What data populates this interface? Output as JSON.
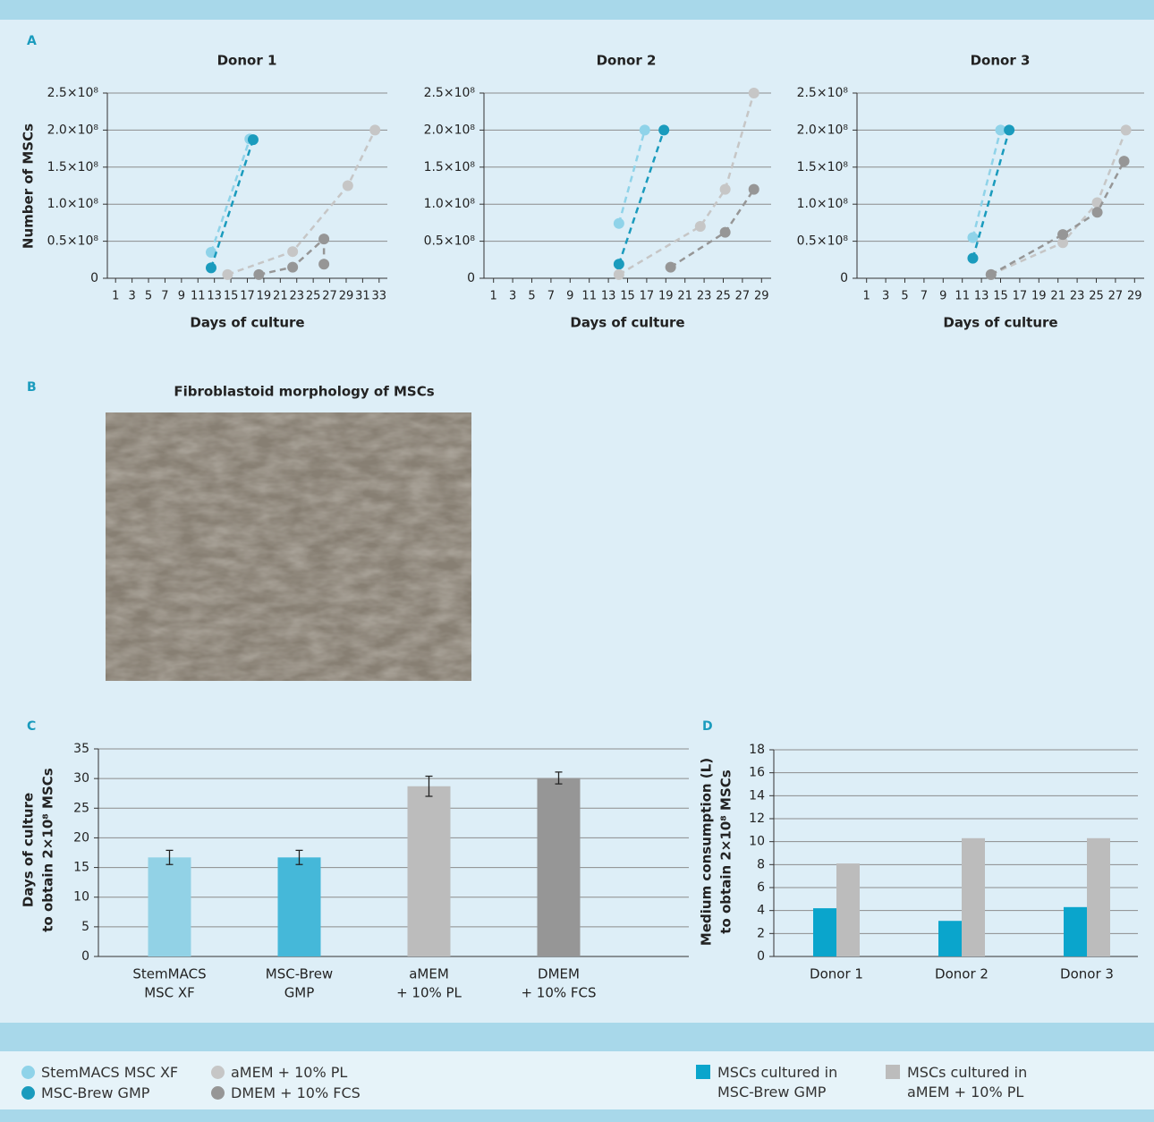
{
  "panels": {
    "a": "A",
    "b": "B",
    "c": "C",
    "d": "D"
  },
  "panel_b": {
    "title": "Fibroblastoid morphology of MSCs"
  },
  "chart_data": [
    {
      "type": "scatter",
      "title": "Donor 1",
      "y_label": "Number of MSCs",
      "x_label": "Days of culture",
      "xlim": [
        0,
        34
      ],
      "xticks": [
        1,
        3,
        5,
        7,
        9,
        11,
        13,
        15,
        17,
        19,
        21,
        23,
        25,
        27,
        29,
        31,
        33
      ],
      "ylim": [
        0,
        250000000
      ],
      "yticks": [
        0,
        {
          "value": 50000000,
          "label": "0.5×10⁸"
        },
        {
          "value": 100000000,
          "label": "1.0×10⁸"
        },
        {
          "value": 150000000,
          "label": "1.5×10⁸"
        },
        {
          "value": 200000000,
          "label": "2.0×10⁸"
        },
        {
          "value": 250000000,
          "label": "2.5×10⁸"
        }
      ],
      "grid": true,
      "series": [
        {
          "name": "StemMACS MSC XF",
          "color": "#8fd3e9",
          "x": [
            12.6,
            17.3
          ],
          "values": [
            35000000,
            188000000
          ]
        },
        {
          "name": "MSC-Brew GMP",
          "color": "#1a9bbd",
          "x": [
            12.6,
            17.7
          ],
          "values": [
            14000000,
            187000000
          ]
        },
        {
          "name": "aMEM + 10% PL",
          "color": "#c6c6c6",
          "x": [
            14.6,
            22.5,
            29.2,
            32.5
          ],
          "values": [
            5000000,
            36000000,
            125000000,
            200000000
          ]
        },
        {
          "name": "DMEM + 10% FCS",
          "color": "#969696",
          "x": [
            18.4,
            22.5,
            26.3,
            26.3
          ],
          "values": [
            5000000,
            15000000,
            53000000,
            19000000
          ]
        }
      ]
    },
    {
      "type": "scatter",
      "title": "Donor 2",
      "x_label": "Days of culture",
      "xlim": [
        0,
        30
      ],
      "xticks": [
        1,
        3,
        5,
        7,
        9,
        11,
        13,
        15,
        17,
        19,
        21,
        23,
        25,
        27,
        29
      ],
      "ylim": [
        0,
        250000000
      ],
      "yticks": [
        0,
        {
          "value": 50000000,
          "label": "0.5×10⁸"
        },
        {
          "value": 100000000,
          "label": "1.0×10⁸"
        },
        {
          "value": 150000000,
          "label": "1.5×10⁸"
        },
        {
          "value": 200000000,
          "label": "2.0×10⁸"
        },
        {
          "value": 250000000,
          "label": "2.5×10⁸"
        }
      ],
      "grid": true,
      "series": [
        {
          "color": "#8fd3e9",
          "x": [
            14.1,
            16.8
          ],
          "values": [
            74000000,
            200000000
          ]
        },
        {
          "color": "#1a9bbd",
          "x": [
            14.1,
            18.8
          ],
          "values": [
            19000000,
            200000000
          ]
        },
        {
          "color": "#c6c6c6",
          "x": [
            14.1,
            22.6,
            25.2,
            28.2
          ],
          "values": [
            5000000,
            70000000,
            120000000,
            250000000
          ]
        },
        {
          "color": "#969696",
          "x": [
            19.5,
            25.2,
            28.2
          ],
          "values": [
            15000000,
            62000000,
            120000000
          ]
        }
      ]
    },
    {
      "type": "scatter",
      "title": "Donor 3",
      "x_label": "Days of culture",
      "xlim": [
        0,
        30
      ],
      "xticks": [
        1,
        3,
        5,
        7,
        9,
        11,
        13,
        15,
        17,
        19,
        21,
        23,
        25,
        27,
        29
      ],
      "ylim": [
        0,
        250000000
      ],
      "yticks": [
        0,
        {
          "value": 50000000,
          "label": "0.5×10⁸"
        },
        {
          "value": 100000000,
          "label": "1.0×10⁸"
        },
        {
          "value": 150000000,
          "label": "1.5×10⁸"
        },
        {
          "value": 200000000,
          "label": "2.0×10⁸"
        },
        {
          "value": 250000000,
          "label": "2.5×10⁸"
        }
      ],
      "grid": true,
      "series": [
        {
          "color": "#8fd3e9",
          "x": [
            12.1,
            15.0
          ],
          "values": [
            55000000,
            200000000
          ]
        },
        {
          "color": "#1a9bbd",
          "x": [
            12.1,
            15.9
          ],
          "values": [
            27000000,
            200000000
          ]
        },
        {
          "color": "#c6c6c6",
          "x": [
            14.0,
            21.5,
            25.1,
            28.1
          ],
          "values": [
            5000000,
            48000000,
            102000000,
            200000000
          ]
        },
        {
          "color": "#969696",
          "x": [
            14.0,
            21.5,
            25.1,
            27.9
          ],
          "values": [
            5000000,
            59000000,
            89000000,
            158000000
          ]
        }
      ]
    },
    {
      "type": "bar",
      "y_label": [
        "Days of culture",
        "to obtain 2×10⁸ MSCs"
      ],
      "categories": [
        [
          "StemMACS",
          "MSC XF"
        ],
        [
          "MSC-Brew",
          "GMP"
        ],
        [
          "aMEM",
          "+ 10% PL"
        ],
        [
          "DMEM",
          "+ 10% FCS"
        ]
      ],
      "values": [
        16.7,
        16.7,
        28.7,
        30.1
      ],
      "errors": [
        1.2,
        1.2,
        1.7,
        1.0
      ],
      "colors": [
        "#92d2e6",
        "#45b8d9",
        "#bcbcbc",
        "#969696"
      ],
      "ylim": [
        0,
        35
      ],
      "yticks": [
        0,
        5,
        10,
        15,
        20,
        25,
        30,
        35
      ],
      "grid": true
    },
    {
      "type": "grouped_bar",
      "y_label": [
        "Medium consumption (L)",
        "to obtain 2×10⁸ MSCs"
      ],
      "categories": [
        "Donor 1",
        "Donor 2",
        "Donor 3"
      ],
      "series": [
        {
          "name": "MSCs cultured in MSC-Brew GMP",
          "color": "#0aa5cc",
          "values": [
            4.2,
            3.1,
            4.3
          ]
        },
        {
          "name": "MSCs cultured in aMEM + 10% PL",
          "color": "#bcbcbc",
          "values": [
            8.1,
            10.3,
            10.3
          ]
        }
      ],
      "ylim": [
        0,
        18
      ],
      "yticks": [
        0,
        2,
        4,
        6,
        8,
        10,
        12,
        14,
        16,
        18
      ],
      "grid": true
    }
  ]
}
